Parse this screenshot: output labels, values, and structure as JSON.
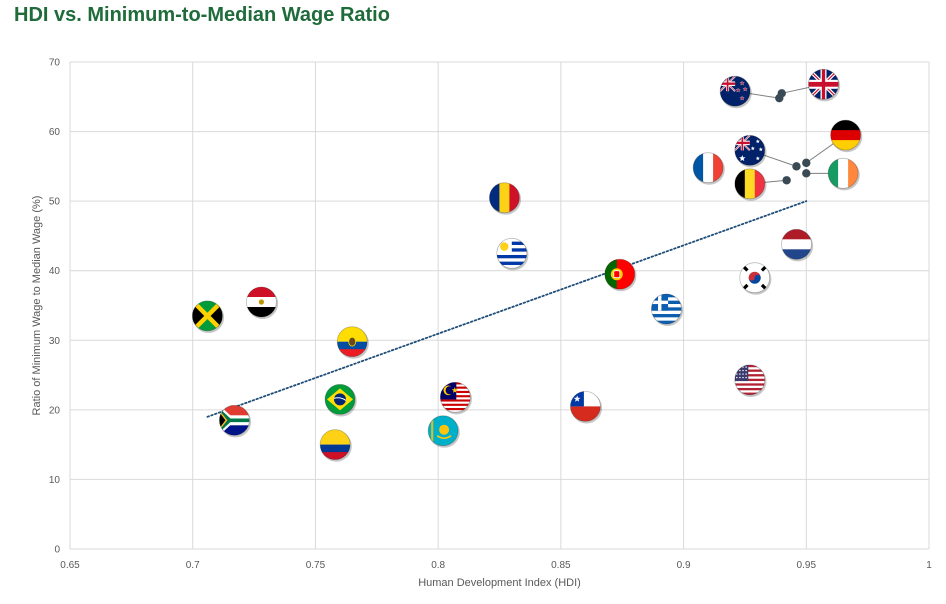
{
  "page": {
    "title": "HDI vs. Minimum-to-Median Wage Ratio"
  },
  "colors": {
    "title": "#1f6b3a",
    "grid": "#d9d9d9",
    "axis_text": "#595959",
    "trendline": "#1f4e79",
    "marker_line": "#7f7f7f",
    "marker_dot": "#3a4a55"
  },
  "chart_data": {
    "type": "scatter",
    "title": "HDI vs. Minimum-to-Median Wage Ratio",
    "xlabel": "Human Development Index (HDI)",
    "ylabel": "Ratio of Minimum Wage to Median Wage (%)",
    "xlim": [
      0.65,
      1
    ],
    "ylim": [
      0,
      70
    ],
    "x_ticks": [
      "0.65",
      "0.7",
      "0.75",
      "0.8",
      "0.85",
      "0.9",
      "0.95",
      "1"
    ],
    "y_ticks": [
      "0",
      "10",
      "20",
      "30",
      "40",
      "50",
      "60",
      "70"
    ],
    "grid": true,
    "trendline": {
      "style": "dotted linear",
      "x": [
        0.706,
        0.95
      ],
      "y": [
        19.0,
        50.0
      ]
    },
    "points": [
      {
        "flag": "jamaica-flag-icon",
        "x": 0.706,
        "y": 33.5
      },
      {
        "flag": "south-africa-flag-icon",
        "x": 0.717,
        "y": 18.5
      },
      {
        "flag": "egypt-flag-icon",
        "x": 0.728,
        "y": 35.5
      },
      {
        "flag": "colombia-flag-icon",
        "x": 0.758,
        "y": 15.0
      },
      {
        "flag": "brazil-flag-icon",
        "x": 0.76,
        "y": 21.5
      },
      {
        "flag": "ecuador-flag-icon",
        "x": 0.765,
        "y": 29.8
      },
      {
        "flag": "kazakhstan-flag-icon",
        "x": 0.802,
        "y": 17.0
      },
      {
        "flag": "malaysia-flag-icon",
        "x": 0.807,
        "y": 21.8
      },
      {
        "flag": "romania-flag-icon",
        "x": 0.827,
        "y": 50.5
      },
      {
        "flag": "uruguay-flag-icon",
        "x": 0.83,
        "y": 42.5
      },
      {
        "flag": "chile-flag-icon",
        "x": 0.86,
        "y": 20.5
      },
      {
        "flag": "portugal-flag-icon",
        "x": 0.874,
        "y": 39.5
      },
      {
        "flag": "greece-flag-icon",
        "x": 0.893,
        "y": 34.5
      },
      {
        "flag": "france-flag-icon",
        "x": 0.91,
        "y": 54.8
      },
      {
        "flag": "usa-flag-icon",
        "x": 0.927,
        "y": 24.3
      },
      {
        "flag": "south-korea-flag-icon",
        "x": 0.929,
        "y": 39.0
      },
      {
        "flag": "netherlands-flag-icon",
        "x": 0.946,
        "y": 43.8
      },
      {
        "flag": "new-zealand-flag-icon",
        "x": 0.939,
        "y": 64.8,
        "label_x": 0.921,
        "label_y": 65.8
      },
      {
        "flag": "uk-flag-icon",
        "x": 0.94,
        "y": 65.5,
        "label_x": 0.957,
        "label_y": 66.8
      },
      {
        "flag": "australia-flag-icon",
        "x": 0.946,
        "y": 55.0,
        "label_x": 0.927,
        "label_y": 57.3
      },
      {
        "flag": "germany-flag-icon",
        "x": 0.95,
        "y": 55.5,
        "label_x": 0.966,
        "label_y": 59.5
      },
      {
        "flag": "belgium-flag-icon",
        "x": 0.942,
        "y": 53.0,
        "label_x": 0.927,
        "label_y": 52.5
      },
      {
        "flag": "ireland-flag-icon",
        "x": 0.95,
        "y": 54.0,
        "label_x": 0.965,
        "label_y": 54.0
      }
    ]
  }
}
